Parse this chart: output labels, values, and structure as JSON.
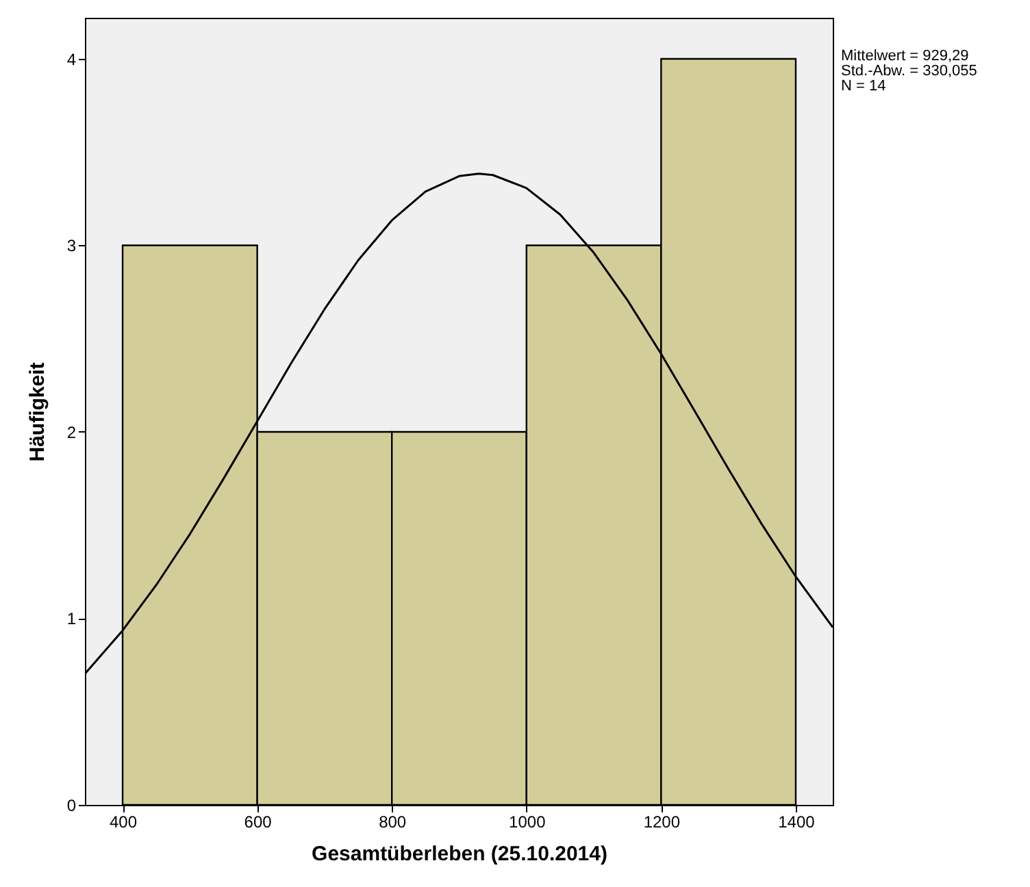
{
  "chart_data": {
    "type": "histogram",
    "xlabel": "Gesamtüberleben (25.10.2014)",
    "ylabel": "Häufigkeit",
    "bins": [
      400,
      600,
      800,
      1000,
      1200,
      1400
    ],
    "values": [
      3,
      2,
      2,
      3,
      4
    ],
    "color": "#d3ce99",
    "series": [
      {
        "type": "line",
        "color": "#000000",
        "x": [
          344,
          400,
          450,
          500,
          550,
          600,
          650,
          700,
          750,
          800,
          850,
          900,
          929.29,
          950,
          1000,
          1050,
          1100,
          1150,
          1200,
          1250,
          1300,
          1350,
          1400,
          1455
        ],
        "values": [
          0.703,
          0.935,
          1.179,
          1.452,
          1.749,
          2.057,
          2.366,
          2.658,
          2.92,
          3.134,
          3.288,
          3.371,
          3.384,
          3.377,
          3.307,
          3.165,
          2.96,
          2.706,
          2.418,
          2.111,
          1.801,
          1.502,
          1.224,
          0.952
        ]
      }
    ],
    "xlim": [
      344,
      1455
    ],
    "ylim": [
      0,
      4.22
    ],
    "xticks": [
      400,
      600,
      800,
      1000,
      1200,
      1400
    ],
    "yticks": [
      0,
      1,
      2,
      3,
      4
    ],
    "annotations": [
      "Mittelwert = 929,29",
      "Std.-Abw. = 330,055",
      "N = 14"
    ]
  }
}
